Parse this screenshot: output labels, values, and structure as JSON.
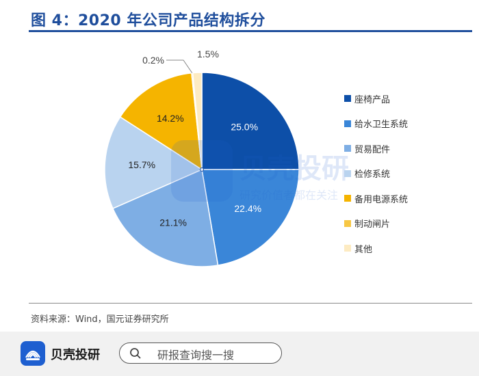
{
  "header": {
    "title": "图 4：2020 年公司产品结构拆分"
  },
  "chart_data": {
    "type": "pie",
    "title": "图 4：2020 年公司产品结构拆分",
    "slices": [
      {
        "label": "座椅产品",
        "value": 25.0,
        "display": "25.0%",
        "color": "#0d4fa8"
      },
      {
        "label": "给水卫生系统",
        "value": 22.4,
        "display": "22.4%",
        "color": "#3a86d8"
      },
      {
        "label": "贸易配件",
        "value": 21.1,
        "display": "21.1%",
        "color": "#7eaee4"
      },
      {
        "label": "检修系统",
        "value": 15.7,
        "display": "15.7%",
        "color": "#b9d3ef"
      },
      {
        "label": "备用电源系统",
        "value": 14.2,
        "display": "14.2%",
        "color": "#f5b400"
      },
      {
        "label": "制动闸片",
        "value": 0.2,
        "display": "0.2%",
        "color": "#f7c744"
      },
      {
        "label": "其他",
        "value": 1.5,
        "display": "1.5%",
        "color": "#fdebc2"
      }
    ],
    "legend_position": "right"
  },
  "source": {
    "text": "资料来源：Wind，国元证券研究所"
  },
  "watermark": {
    "brand": "贝壳投研",
    "tagline": "研究价值者都在关注"
  },
  "footer": {
    "brand": "贝壳投研",
    "search_placeholder": "研报查询搜一搜",
    "logo_icon": "shell-logo-icon",
    "search_icon": "search-icon"
  }
}
